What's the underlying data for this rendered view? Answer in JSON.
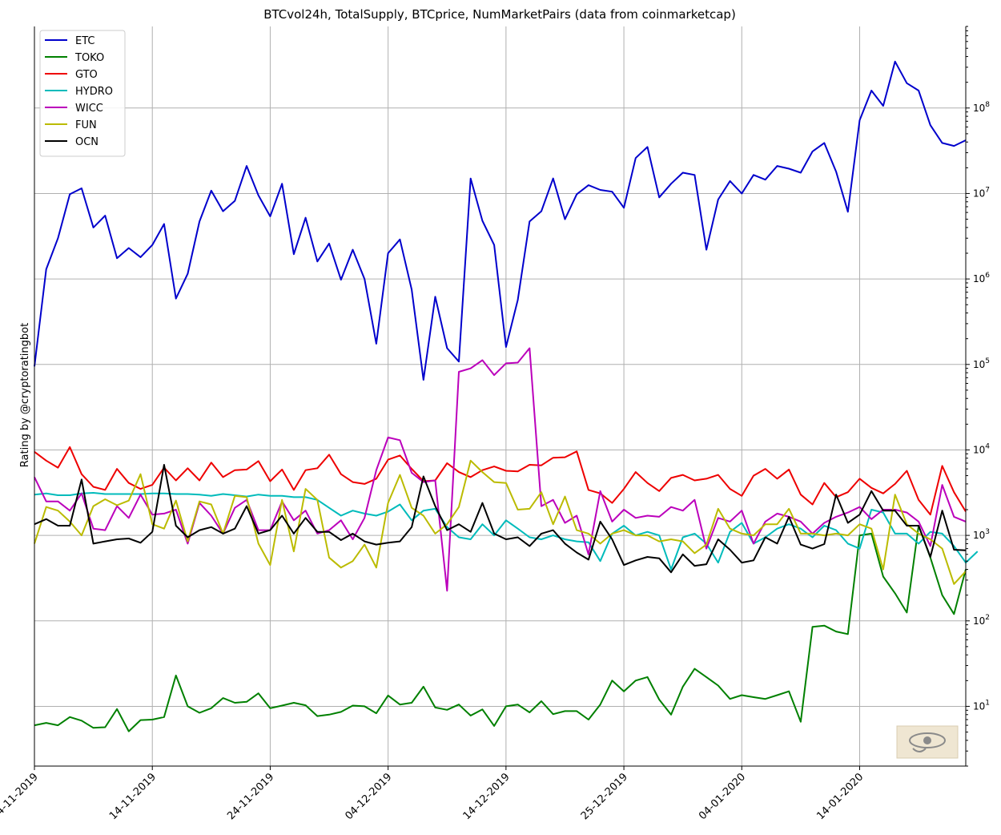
{
  "chart_data": {
    "type": "line",
    "title": "BTCvol24h, TotalSupply, BTCprice, NumMarketPairs (data from coinmarketcap)",
    "ylabel": "Rating by @cryptoratingbot",
    "xlabel": "",
    "yscale": "log",
    "ylim": [
      2,
      900000000
    ],
    "y_axis_side": "right",
    "ytick_labels": [
      {
        "value": 10,
        "label": "10^1"
      },
      {
        "value": 100,
        "label": "10^2"
      },
      {
        "value": 1000,
        "label": "10^3"
      },
      {
        "value": 10000,
        "label": "10^4"
      },
      {
        "value": 100000,
        "label": "10^5"
      },
      {
        "value": 1000000,
        "label": "10^6"
      },
      {
        "value": 10000000,
        "label": "10^7"
      },
      {
        "value": 100000000,
        "label": "10^8"
      }
    ],
    "xlim": [
      0,
      79
    ],
    "xticks": [
      {
        "index": 0,
        "label": "04-11-2019"
      },
      {
        "index": 10,
        "label": "14-11-2019"
      },
      {
        "index": 20,
        "label": "24-11-2019"
      },
      {
        "index": 30,
        "label": "04-12-2019"
      },
      {
        "index": 40,
        "label": "14-12-2019"
      },
      {
        "index": 50,
        "label": "25-12-2019"
      },
      {
        "index": 60,
        "label": "04-01-2020"
      },
      {
        "index": 70,
        "label": "14-01-2020"
      }
    ],
    "grid": true,
    "legend_position": "upper-left",
    "series": [
      {
        "name": "ETC",
        "color": "#0000cc",
        "values": [
          95000,
          1300000,
          3000000,
          9800000,
          11500000,
          4000000,
          5500000,
          1750000,
          2300000,
          1800000,
          2500000,
          4400000,
          590000,
          1150000,
          4700000,
          10800000,
          6200000,
          8200000,
          21000000,
          9500000,
          5400000,
          13000000,
          1950000,
          5200000,
          1600000,
          2600000,
          980000,
          2200000,
          1000000,
          175000,
          2000000,
          2900000,
          750000,
          66000,
          620000,
          155000,
          108000,
          15000000,
          4800000,
          2500000,
          160000,
          570000,
          4700000,
          6200000,
          15000000,
          5000000,
          9800000,
          12500000,
          11000000,
          10500000,
          6800000,
          26000000,
          35000000,
          9000000,
          13000000,
          17500000,
          16500000,
          2200000,
          8500000,
          14000000,
          10000000,
          16500000,
          14500000,
          21000000,
          19500000,
          17500000,
          31000000,
          39000000,
          18000000,
          6100000,
          72000000,
          160000000,
          106000000,
          350000000,
          195000000,
          160000000,
          63000000,
          39000000,
          36000000,
          42000000
        ]
      },
      {
        "name": "TOKO",
        "color": "#008000",
        "values": [
          6,
          6.4,
          6,
          7.5,
          6.8,
          5.6,
          5.7,
          9.3,
          5.1,
          6.9,
          7,
          7.5,
          23,
          10,
          8.4,
          9.5,
          12.5,
          11,
          11.3,
          14.2,
          9.5,
          10.2,
          11,
          10.3,
          7.7,
          8,
          8.6,
          10.2,
          10,
          8.3,
          13.4,
          10.5,
          11,
          17,
          9.7,
          9.1,
          10.5,
          7.8,
          9.2,
          5.9,
          10,
          10.5,
          8.5,
          11.5,
          8.1,
          8.8,
          8.8,
          7,
          10.5,
          20,
          15,
          20,
          22,
          12,
          8,
          17,
          27.5,
          22,
          17.5,
          12.2,
          13.5,
          12.8,
          12.2,
          13.5,
          15,
          6.6,
          85,
          88,
          75,
          70,
          1000,
          1050,
          330,
          210,
          125,
          1300,
          550,
          200,
          120,
          400
        ]
      },
      {
        "name": "GTO",
        "color": "#ee0000",
        "values": [
          9500,
          7500,
          6200,
          10800,
          5200,
          3700,
          3400,
          6000,
          4100,
          3500,
          3900,
          6200,
          4400,
          6100,
          4400,
          7100,
          4800,
          5800,
          5900,
          7400,
          4300,
          5900,
          3400,
          5800,
          6100,
          8800,
          5200,
          4200,
          4000,
          4600,
          7700,
          8600,
          6000,
          4300,
          4400,
          7000,
          5500,
          4800,
          5800,
          6400,
          5700,
          5600,
          6700,
          6600,
          8100,
          8200,
          9600,
          3400,
          3100,
          2400,
          3500,
          5500,
          4100,
          3300,
          4700,
          5100,
          4400,
          4600,
          5100,
          3500,
          2900,
          5000,
          6000,
          4600,
          5900,
          3000,
          2300,
          4100,
          2800,
          3200,
          4600,
          3600,
          3100,
          4000,
          5700,
          2600,
          1750,
          6500,
          3200,
          1900
        ]
      },
      {
        "name": "HYDRO",
        "color": "#00bbbb",
        "values": [
          3000,
          3100,
          2950,
          2950,
          3100,
          3150,
          3050,
          3050,
          3050,
          3050,
          3100,
          3100,
          3050,
          3050,
          3000,
          2900,
          3050,
          2950,
          2850,
          3000,
          2900,
          2900,
          2800,
          2800,
          2600,
          2100,
          1700,
          1950,
          1800,
          1700,
          1900,
          2300,
          1500,
          1950,
          2050,
          1250,
          950,
          900,
          1350,
          1000,
          1500,
          1200,
          950,
          900,
          1000,
          900,
          850,
          830,
          500,
          1050,
          1300,
          1000,
          1100,
          1000,
          400,
          950,
          1050,
          800,
          480,
          1100,
          1400,
          800,
          950,
          1200,
          1350,
          1200,
          950,
          1300,
          1150,
          800,
          700,
          2000,
          1850,
          1050,
          1050,
          800,
          1100,
          1050,
          750,
          480,
          650
        ]
      },
      {
        "name": "WICC",
        "color": "#bb00bb",
        "values": [
          4800,
          2500,
          2500,
          1950,
          3100,
          1200,
          1150,
          2200,
          1600,
          3000,
          1750,
          1800,
          2000,
          800,
          2400,
          1700,
          1050,
          2100,
          2600,
          1150,
          1150,
          2500,
          1500,
          1950,
          1050,
          1150,
          1500,
          900,
          1600,
          5800,
          14000,
          13000,
          5400,
          4200,
          4400,
          225,
          82000,
          90000,
          112000,
          75000,
          103000,
          105000,
          155000,
          2200,
          2600,
          1400,
          1700,
          600,
          3300,
          1450,
          2000,
          1600,
          1700,
          1650,
          2150,
          1950,
          2600,
          700,
          1600,
          1450,
          1950,
          800,
          1450,
          1800,
          1650,
          1450,
          1050,
          1400,
          1650,
          1850,
          2150,
          1550,
          2000,
          2000,
          1850,
          1450,
          750,
          3900,
          1650,
          1450
        ]
      },
      {
        "name": "FUN",
        "color": "#bbbb00",
        "values": [
          800,
          2150,
          1950,
          1450,
          1000,
          2200,
          2650,
          2250,
          2550,
          5200,
          1350,
          1200,
          2550,
          850,
          2500,
          2300,
          1050,
          2900,
          2800,
          800,
          450,
          2600,
          650,
          3500,
          2600,
          550,
          420,
          500,
          780,
          420,
          2400,
          5100,
          2100,
          1700,
          1050,
          1350,
          2150,
          7500,
          5500,
          4200,
          4100,
          2000,
          2050,
          3200,
          1350,
          2850,
          1150,
          1050,
          800,
          1050,
          1150,
          1000,
          1000,
          850,
          900,
          850,
          620,
          780,
          2050,
          1200,
          1050,
          1000,
          1350,
          1350,
          2050,
          1050,
          1050,
          1000,
          1050,
          1000,
          1350,
          1200,
          400,
          3000,
          1350,
          1050,
          900,
          700,
          270,
          380
        ]
      },
      {
        "name": "OCN",
        "color": "#000000",
        "values": [
          1350,
          1550,
          1300,
          1300,
          4500,
          800,
          850,
          900,
          920,
          820,
          1100,
          6700,
          1300,
          950,
          1150,
          1250,
          1050,
          1200,
          2200,
          1050,
          1150,
          1700,
          1050,
          1600,
          1100,
          1100,
          880,
          1050,
          850,
          780,
          820,
          850,
          1250,
          4900,
          2200,
          1150,
          1350,
          1100,
          2400,
          1050,
          900,
          950,
          750,
          1050,
          1150,
          800,
          630,
          520,
          1450,
          900,
          450,
          510,
          560,
          540,
          370,
          600,
          440,
          460,
          900,
          680,
          480,
          510,
          950,
          800,
          1650,
          780,
          700,
          790,
          3000,
          1400,
          1750,
          3300,
          1950,
          1950,
          1300,
          1300,
          560,
          1950,
          680,
          670
        ]
      }
    ]
  }
}
